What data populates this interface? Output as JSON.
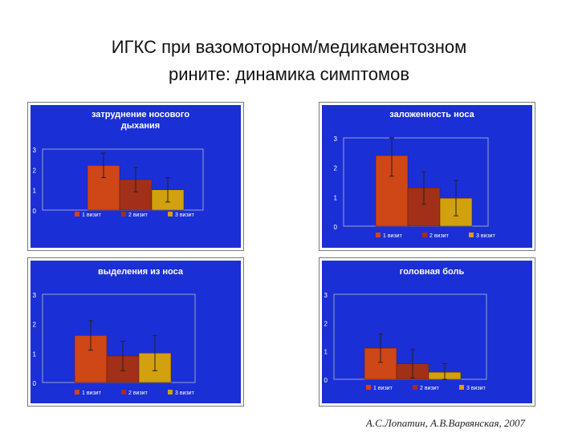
{
  "slide": {
    "title_line1": "ИГКС при вазомоторном/медикаментозном",
    "title_line2": "рините: динамика симптомов",
    "citation": "А.С.Лопатин, А.В.Варвянская, 2007"
  },
  "colors": {
    "background": "#1b2fd6",
    "plot_border": "#9aa0c8",
    "bar_colors": [
      "#cf4617",
      "#a23018",
      "#d1a10e"
    ],
    "error_bar": "#222222",
    "text": "#ffffff"
  },
  "chart_data": [
    {
      "type": "bar",
      "title": "затруднение носового дыхания",
      "categories": [
        "1 визит",
        "2 визит",
        "3 визит"
      ],
      "values": [
        2.2,
        1.5,
        1.0
      ],
      "errors": [
        0.6,
        0.6,
        0.6
      ],
      "ylim": [
        0,
        3
      ],
      "yticks": [
        "0",
        "1",
        "2",
        "3"
      ],
      "legend": [
        "1 визит",
        "2 визит",
        "3 визит"
      ],
      "legend_position": "bottom"
    },
    {
      "type": "bar",
      "title": "заложенность носа",
      "categories": [
        "1 визит",
        "2 визит",
        "3 визит"
      ],
      "values": [
        2.4,
        1.3,
        0.95
      ],
      "errors": [
        0.7,
        0.55,
        0.6
      ],
      "ylim": [
        0,
        3
      ],
      "yticks": [
        "0",
        "1",
        "2",
        "3"
      ],
      "legend": [
        "1 визит",
        "2 визит",
        "3 визит"
      ],
      "legend_position": "bottom"
    },
    {
      "type": "bar",
      "title": "выделения из носа",
      "categories": [
        "1 визит",
        "2 визит",
        "3 визит"
      ],
      "values": [
        1.6,
        0.9,
        1.0
      ],
      "errors": [
        0.5,
        0.5,
        0.6
      ],
      "ylim": [
        0,
        3
      ],
      "yticks": [
        "0",
        "1",
        "2",
        "3"
      ],
      "legend": [
        "1 визит",
        "2 визит",
        "3 визит"
      ],
      "legend_position": "bottom"
    },
    {
      "type": "bar",
      "title": "головная боль",
      "categories": [
        "1 визит",
        "2 визит",
        "3 визит"
      ],
      "values": [
        1.1,
        0.55,
        0.25
      ],
      "errors": [
        0.5,
        0.5,
        0.3
      ],
      "ylim": [
        0,
        3
      ],
      "yticks": [
        "0",
        "1",
        "2",
        "3"
      ],
      "legend": [
        "1 визит",
        "2 визит",
        "3 визит"
      ],
      "legend_position": "bottom"
    }
  ]
}
